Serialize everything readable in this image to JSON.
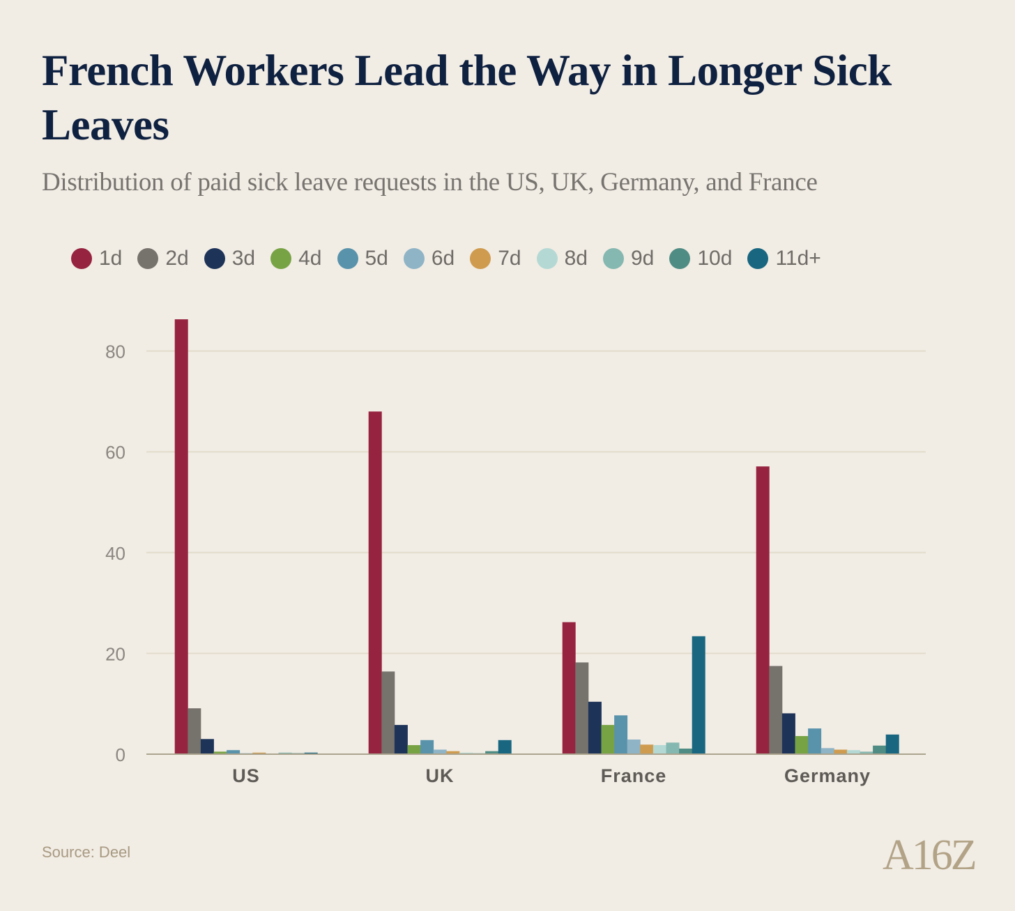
{
  "title": "French Workers Lead the Way in Longer Sick Leaves",
  "subtitle": "Distribution of paid sick leave requests in the US, UK, Germany, and France",
  "source": "Source: Deel",
  "logo": "A16Z",
  "chart_data": {
    "type": "bar",
    "categories": [
      "US",
      "UK",
      "France",
      "Germany"
    ],
    "ylim": [
      0,
      90
    ],
    "yticks": [
      0,
      20,
      40,
      60,
      80
    ],
    "grid": true,
    "legend_position": "top",
    "xlabel": "",
    "ylabel": "",
    "series": [
      {
        "name": "1d",
        "color": "#962340",
        "values": [
          86.3,
          68.0,
          26.2,
          57.1
        ]
      },
      {
        "name": "2d",
        "color": "#76726c",
        "values": [
          9.1,
          16.4,
          18.2,
          17.5
        ]
      },
      {
        "name": "3d",
        "color": "#1e3358",
        "values": [
          3.0,
          5.8,
          10.4,
          8.1
        ]
      },
      {
        "name": "4d",
        "color": "#78a345",
        "values": [
          0.5,
          1.8,
          5.8,
          3.6
        ]
      },
      {
        "name": "5d",
        "color": "#5993ab",
        "values": [
          0.8,
          2.8,
          7.7,
          5.1
        ]
      },
      {
        "name": "6d",
        "color": "#8fb4c6",
        "values": [
          0.2,
          0.9,
          2.9,
          1.2
        ]
      },
      {
        "name": "7d",
        "color": "#cf9b4e",
        "values": [
          0.3,
          0.6,
          1.9,
          0.9
        ]
      },
      {
        "name": "8d",
        "color": "#b4d9d4",
        "values": [
          0.1,
          0.3,
          1.8,
          0.8
        ]
      },
      {
        "name": "9d",
        "color": "#85b8b0",
        "values": [
          0.3,
          0.2,
          2.3,
          0.5
        ]
      },
      {
        "name": "10d",
        "color": "#4f8c83",
        "values": [
          0.2,
          0.6,
          1.1,
          1.7
        ]
      },
      {
        "name": "11d+",
        "color": "#186680",
        "values": [
          0.3,
          2.8,
          23.4,
          3.9
        ]
      }
    ]
  }
}
